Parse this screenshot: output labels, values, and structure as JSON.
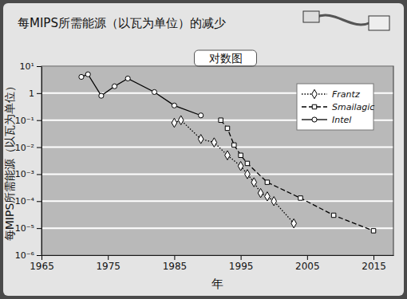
{
  "chart_data": {
    "type": "line",
    "title": "每MIPS所需能源（以瓦为单位）的减少",
    "subtitle": "对数图",
    "x_label": "年",
    "y_label": "每MIPS所需能源（以瓦为单位）",
    "log": "y",
    "grid": true,
    "legend": "upper right",
    "xlim": [
      1965,
      2018
    ],
    "xticks": [
      1965,
      1975,
      1985,
      1995,
      2005,
      2015
    ],
    "ylim": [
      1e-06,
      10
    ],
    "yticks": [
      {
        "value": 1e-06,
        "label": "10⁻⁶"
      },
      {
        "value": 1e-05,
        "label": "10⁻⁵"
      },
      {
        "value": 0.0001,
        "label": "10⁻⁴"
      },
      {
        "value": 0.001,
        "label": "10⁻³"
      },
      {
        "value": 0.01,
        "label": "10⁻²"
      },
      {
        "value": 0.1,
        "label": "10⁻¹"
      },
      1,
      {
        "value": 10,
        "label": "10¹"
      }
    ],
    "series": [
      {
        "name": "Frantz",
        "color": "#000000",
        "marker": "diamond",
        "line_style": "dotted",
        "x": [
          1985,
          1986,
          1989,
          1991,
          1993,
          1995,
          1996,
          1997,
          1998,
          1999,
          2000,
          2003
        ],
        "values": [
          0.08,
          0.1,
          0.02,
          0.015,
          0.005,
          0.002,
          0.001,
          0.0005,
          0.0002,
          0.00015,
          0.0001,
          1.5e-05
        ]
      },
      {
        "name": "Smailagic",
        "color": "#000000",
        "marker": "square",
        "line_style": "dashed",
        "x": [
          1992,
          1993,
          1994,
          1995,
          1996,
          1999,
          2004,
          2009,
          2015
        ],
        "values": [
          0.1,
          0.05,
          0.012,
          0.005,
          0.0025,
          0.0005,
          0.00013,
          3e-05,
          8e-06
        ]
      },
      {
        "name": "Intel",
        "color": "#000000",
        "marker": "circle",
        "line_style": "solid",
        "x": [
          1971,
          1972,
          1974,
          1976,
          1978,
          1982,
          1985,
          1989
        ],
        "values": [
          4,
          5,
          0.8,
          1.8,
          3.5,
          1.1,
          0.35,
          0.15
        ]
      }
    ]
  }
}
